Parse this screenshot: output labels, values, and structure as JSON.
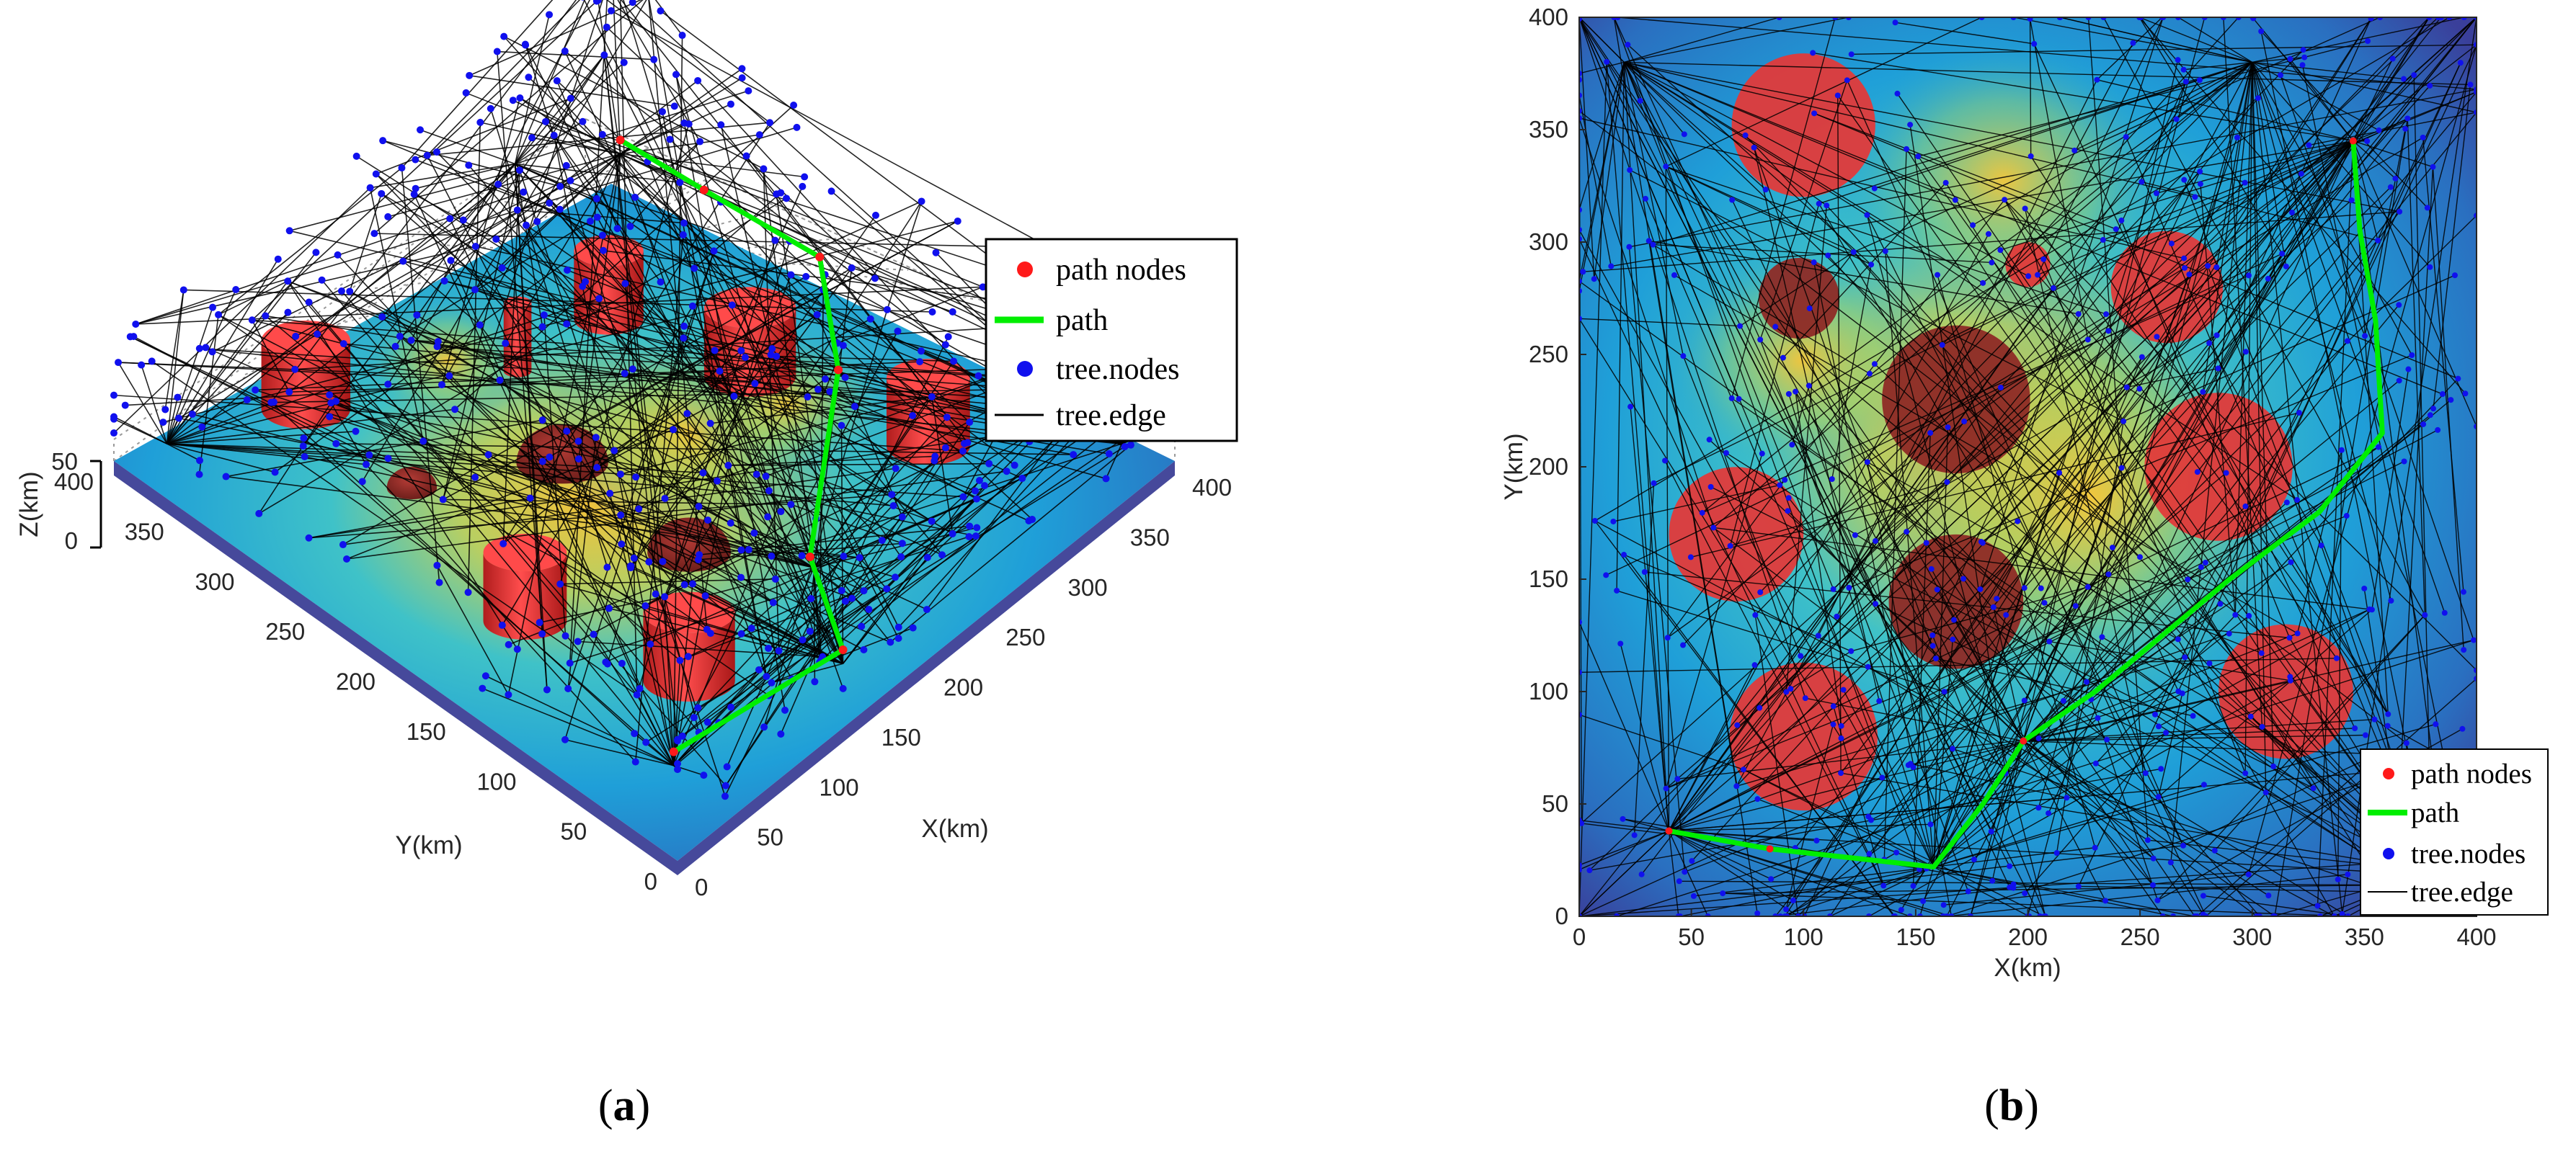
{
  "colors": {
    "path": "#00ee00",
    "path_nodes": "#ff1a1a",
    "tree_nodes": "#1010ee",
    "tree_edge": "#000000",
    "obstacle": "#e23a3a",
    "terrain_low": "#3a3f9a",
    "terrain_mid": "#1f9fd8",
    "terrain_high": "#f2c23a"
  },
  "captions": {
    "a": "a",
    "b": "b"
  },
  "chart_data": [
    {
      "type": "scatter",
      "panel": "a",
      "view": "3d",
      "xlabel": "X(km)",
      "ylabel": "Y(km)",
      "zlabel": "Z(km)",
      "xlim": [
        0,
        400
      ],
      "ylim": [
        0,
        400
      ],
      "zlim": [
        0,
        50
      ],
      "x_ticks": [
        "0",
        "50",
        "100",
        "150",
        "200",
        "250",
        "300",
        "350",
        "400"
      ],
      "y_ticks": [
        "0",
        "50",
        "100",
        "150",
        "200",
        "250",
        "300",
        "350",
        "400"
      ],
      "z_ticks": [
        "0",
        "50"
      ],
      "grid": true,
      "legend_position": "top-right",
      "legend": [
        "path nodes",
        "path",
        "tree.nodes",
        "tree.edge"
      ],
      "series": [
        {
          "name": "path",
          "x": [
            40,
            158,
            195,
            305,
            358,
            350,
            345
          ],
          "y": [
            38,
            22,
            78,
            155,
            215,
            290,
            345
          ]
        }
      ]
    },
    {
      "type": "scatter",
      "panel": "b",
      "view": "top",
      "xlabel": "X(km)",
      "ylabel": "Y(km)",
      "xlim": [
        0,
        400
      ],
      "ylim": [
        0,
        400
      ],
      "x_ticks": [
        "0",
        "50",
        "100",
        "150",
        "200",
        "250",
        "300",
        "350",
        "400"
      ],
      "y_ticks": [
        "0",
        "50",
        "100",
        "150",
        "200",
        "250",
        "300",
        "350",
        "400"
      ],
      "grid": false,
      "legend_position": "bottom-right",
      "legend": [
        "path nodes",
        "path",
        "tree.nodes",
        "tree.edge"
      ],
      "series": [
        {
          "name": "path",
          "x": [
            40,
            85,
            158,
            180,
            198,
            230,
            290,
            330,
            358,
            355,
            348,
            345
          ],
          "y": [
            38,
            30,
            22,
            50,
            78,
            100,
            150,
            180,
            215,
            265,
            305,
            345
          ]
        },
        {
          "name": "path nodes",
          "x": [
            40,
            85,
            198,
            345
          ],
          "y": [
            38,
            30,
            78,
            345
          ]
        }
      ],
      "obstacles": [
        {
          "x": 100,
          "y": 352,
          "r": 32
        },
        {
          "x": 98,
          "y": 275,
          "r": 18
        },
        {
          "x": 200,
          "y": 290,
          "r": 10
        },
        {
          "x": 262,
          "y": 280,
          "r": 25
        },
        {
          "x": 168,
          "y": 230,
          "r": 33
        },
        {
          "x": 285,
          "y": 200,
          "r": 33
        },
        {
          "x": 70,
          "y": 170,
          "r": 30
        },
        {
          "x": 168,
          "y": 140,
          "r": 30
        },
        {
          "x": 100,
          "y": 80,
          "r": 33
        },
        {
          "x": 315,
          "y": 100,
          "r": 30
        }
      ]
    }
  ]
}
